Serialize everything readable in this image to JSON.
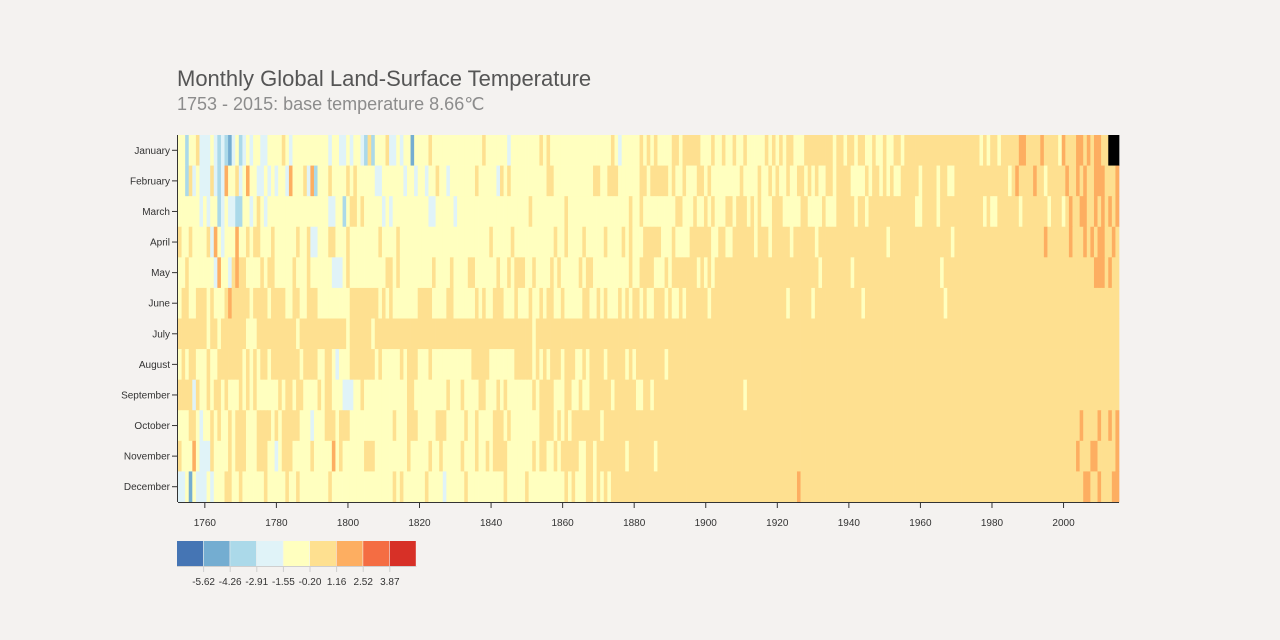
{
  "title": "Monthly Global Land-Surface Temperature",
  "subtitle": "1753 - 2015: base temperature 8.66℃",
  "chart_data": {
    "type": "heatmap",
    "title": "Monthly Global Land-Surface Temperature",
    "subtitle": "1753 - 2015: base temperature 8.66℃",
    "base_temperature": 8.66,
    "year_range": [
      1753,
      2015
    ],
    "months": [
      "January",
      "February",
      "March",
      "April",
      "May",
      "June",
      "July",
      "August",
      "September",
      "October",
      "November",
      "December"
    ],
    "x_ticks": [
      1760,
      1780,
      1800,
      1820,
      1840,
      1860,
      1880,
      1900,
      1920,
      1940,
      1960,
      1980,
      2000
    ],
    "legend": {
      "colors": [
        "#4575b4",
        "#74add1",
        "#abd9e9",
        "#e0f3f8",
        "#ffffbf",
        "#fee090",
        "#fdae61",
        "#f46d43",
        "#d73027"
      ],
      "thresholds": [
        "-5.62",
        "-4.26",
        "-2.91",
        "-1.55",
        "-0.20",
        "1.16",
        "2.52",
        "3.87"
      ]
    },
    "rows": [
      {
        "month": "January",
        "codes": "44244533343232134234344334444543444444444434433434432524445334344144445444444444444445444444344444444545444444444444444445434444454545444455455555444544544544544444545454554445555555545545545544544544554555555555555555555555454554555556655556555546555665656655"
      },
      {
        "month": "February",
        "codes": "44253433353236445346443343434436444536244454444545444443344444434434434454434444444544444354544444444445544444444444554455544444455455555454454445545444444445444454454544544554545445545555444454554545445555545555455445555555555555554565555655455555655656556665556"
      },
      {
        "month": "March",
        "codes": "44444434344234332244345434444444444444444433442455454444434344444444443344444344444444444444444444544444444454444444444444444454454444444445544454454544455455545454445554444455444454445555545545555555555555445555455555555555545445555554555555545554565566556565656"
      },
      {
        "month": "April",
        "codes": "54454444536434446445455444544444454453344455444544444444544445444444444444444444444444454444454444444444454454444544444544445454445555544454444555555445544555555455545555545555554555555555555555555545555555555555555545555555555555555555555555655555565556565665565"
      },
      {
        "month": "May",
        "codes": "44544444443644356554444545544444544454444443334544444444445545444444444544445444455444444544545554454444545444445455444444444454455554445455555554545455555555555555555555555555555455555555455555555555555555555555545555555555555555555555555555555555555555556665655"
      },
      {
        "month": "June",
        "codes": "45544555454445655555455554555544554455544444444455555555454544444445555444455444444545445554445444544545544544444554454544454545545445554544545555554555555555555555555555455555545555555555555455555555555555555555554555555555555555555555555555555555555555555555555"
      },
      {
        "month": "July",
        "codes": "55555555455455555554445555555555545555555555555455555545555555555555555555555555555555555555555555545555555555555555555555555555555555555555555555555555555555555555555555555555555555555555555555555555555555555555555555555555555555555555555555555555555555555555555"
      },
      {
        "month": "August",
        "codes": "45455444544555555545454554555555554555544554344455555554544444545554445444444444445555544444445555545454555455544545555455555454555555554555555555555555555555555555555555555555555555555555555555555555555555555555555555555555555555555555555555555555555555555555555"
      },
      {
        "month": "September",
        "codes": "55553544545545444545454444445455455444454554443334454444444444445544444444454445444455444545444444454555544455445445555554555555445545555555555555555555555555455555555555555555555555555555555555555555555555555555555555555555555555555555555555555555555555555555555"
      },
      {
        "month": "October",
        "codes": "44455434454544545554445555454555554443444555455544444444444454445554444455544444544544445554544444444555545454555555554555555555555555555555555555555555555555555555555555555555555555555555555555555555555555555555555555555555555555555555555555555555555565555655656"
      },
      {
        "month": "November",
        "codes": "54446433354444545554445554434555444445444446454444445554444444445444445445444445444544545555444444454554454555554455455555555455555554555555555555555555555555555555555555555555555555555555555555555555555555555555555555555555555555555555555555555555555655566555556565"
      },
      {
        "month": "December",
        "codes": "33414333434445544544444454444454454444444454444444444444444454544444454444344444544444444445444445444444444454544455454545555555555555555555555555555555555555555555555555555655555555555555555555555555555555555555555555555555555555555555555555555555555556655655566565"
      }
    ]
  }
}
